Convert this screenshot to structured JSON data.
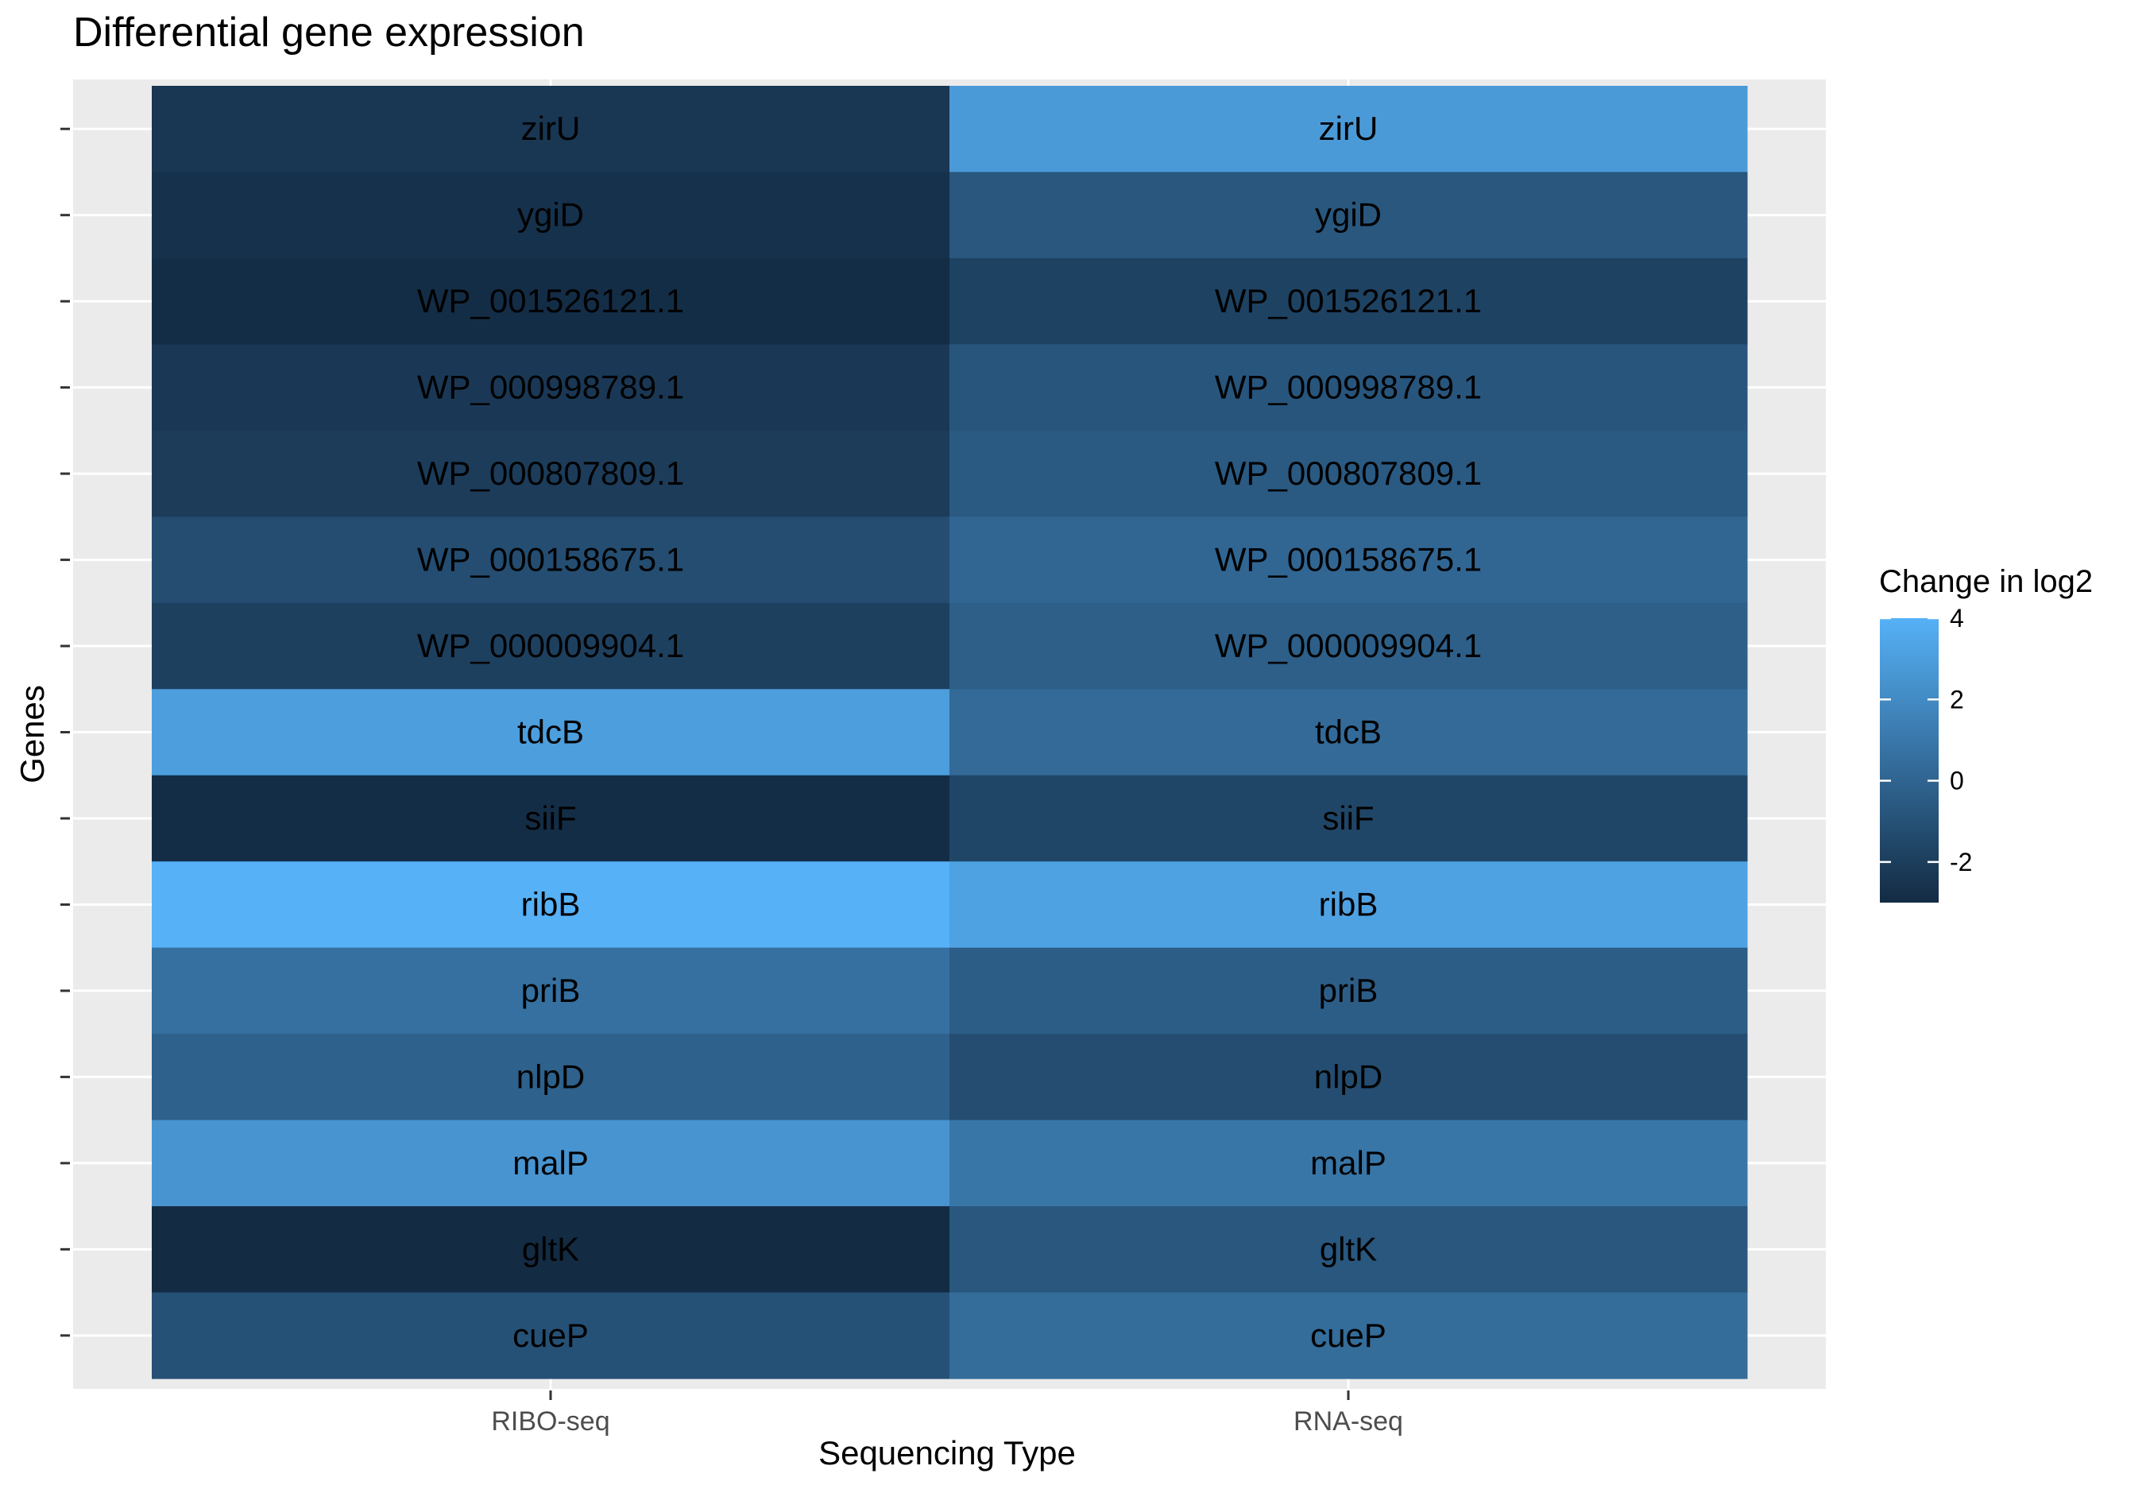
{
  "chart_data": {
    "type": "heatmap",
    "title": "Differential gene expression",
    "xlabel": "Sequencing Type",
    "ylabel": "Genes",
    "categories": [
      "RIBO-seq",
      "RNA-seq"
    ],
    "genes": [
      "zirU",
      "ygiD",
      "WP_001526121.1",
      "WP_000998789.1",
      "WP_000807809.1",
      "WP_000158675.1",
      "WP_000009904.1",
      "tdcB",
      "siiF",
      "ribB",
      "priB",
      "nlpD",
      "malP",
      "gltK",
      "cueP"
    ],
    "values": [
      [
        -2.4,
        2.8
      ],
      [
        -2.7,
        -0.7
      ],
      [
        -2.9,
        -1.8
      ],
      [
        -2.3,
        -0.8
      ],
      [
        -2.1,
        -0.6
      ],
      [
        -1.2,
        0.1
      ],
      [
        -1.9,
        -0.3
      ],
      [
        3.0,
        0.3
      ],
      [
        -2.9,
        -1.6
      ],
      [
        4.0,
        3.2
      ],
      [
        0.6,
        -0.4
      ],
      [
        -0.2,
        -1.2
      ],
      [
        2.5,
        0.9
      ],
      [
        -3.0,
        -0.7
      ],
      [
        -1.0,
        0.4
      ]
    ],
    "legend": {
      "title": "Change in log2",
      "ticks": [
        4,
        2,
        0,
        -2
      ],
      "range": [
        -3.0,
        4.0
      ],
      "low_color": "#132B43",
      "high_color": "#56B1F7",
      "placement": "right"
    },
    "panel_background": "#EBEBEB",
    "grid": true
  }
}
